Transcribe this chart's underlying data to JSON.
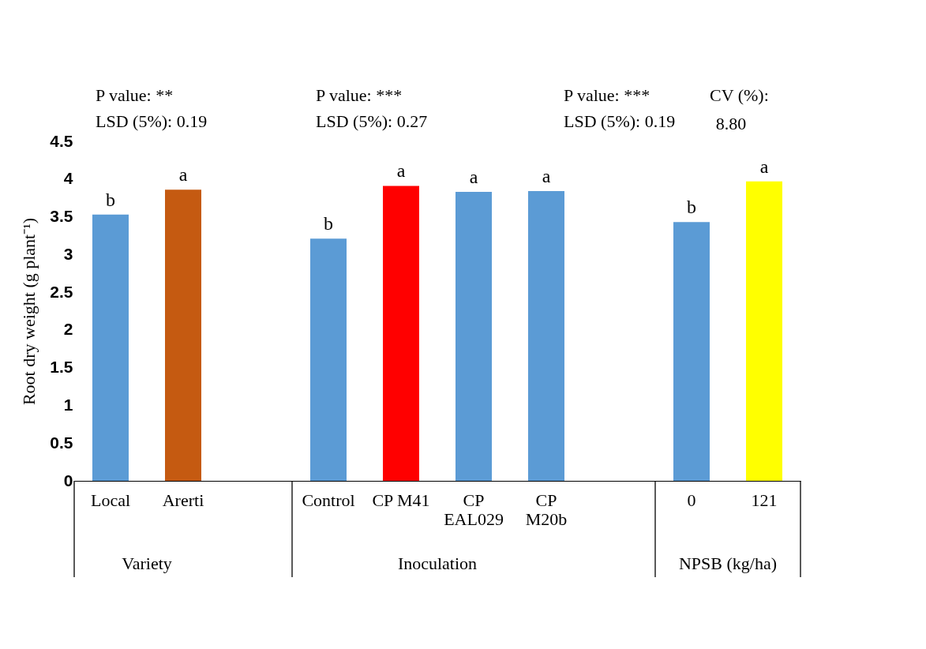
{
  "chart_data": {
    "type": "bar",
    "ylabel": "Root dry weight (g plant⁻¹)",
    "categories": [
      "Local",
      "Arerti",
      null,
      "Control",
      "CP M41",
      "CP\nEAL029",
      "CP\nM20b",
      null,
      "0",
      "121"
    ],
    "values": [
      3.53,
      3.86,
      null,
      3.21,
      3.91,
      3.83,
      3.84,
      null,
      3.43,
      3.97
    ],
    "colors": [
      "#5b9bd5",
      "#c55a11",
      "#5b9bd5",
      "#5b9bd5",
      "#ff0000",
      "#5b9bd5",
      "#5b9bd5",
      "#5b9bd5",
      "#5b9bd5",
      "#ffff00"
    ],
    "value_labels": [
      "b",
      "a",
      null,
      "b",
      "a",
      "a",
      "a",
      null,
      "b",
      "a"
    ],
    "ylim": [
      0,
      4.5
    ],
    "yticks": [
      0,
      0.5,
      1,
      1.5,
      2,
      2.5,
      3,
      3.5,
      4,
      4.5
    ],
    "grid": false,
    "annotations": [
      "P value: **",
      "LSD (5%): 0.19",
      "P value: ***",
      "LSD (5%): 0.27",
      "P value: ***",
      "LSD (5%): 0.19",
      "CV (%):",
      "8.80",
      "Variety",
      "Inoculation",
      "NPSB (kg/ha)"
    ]
  }
}
